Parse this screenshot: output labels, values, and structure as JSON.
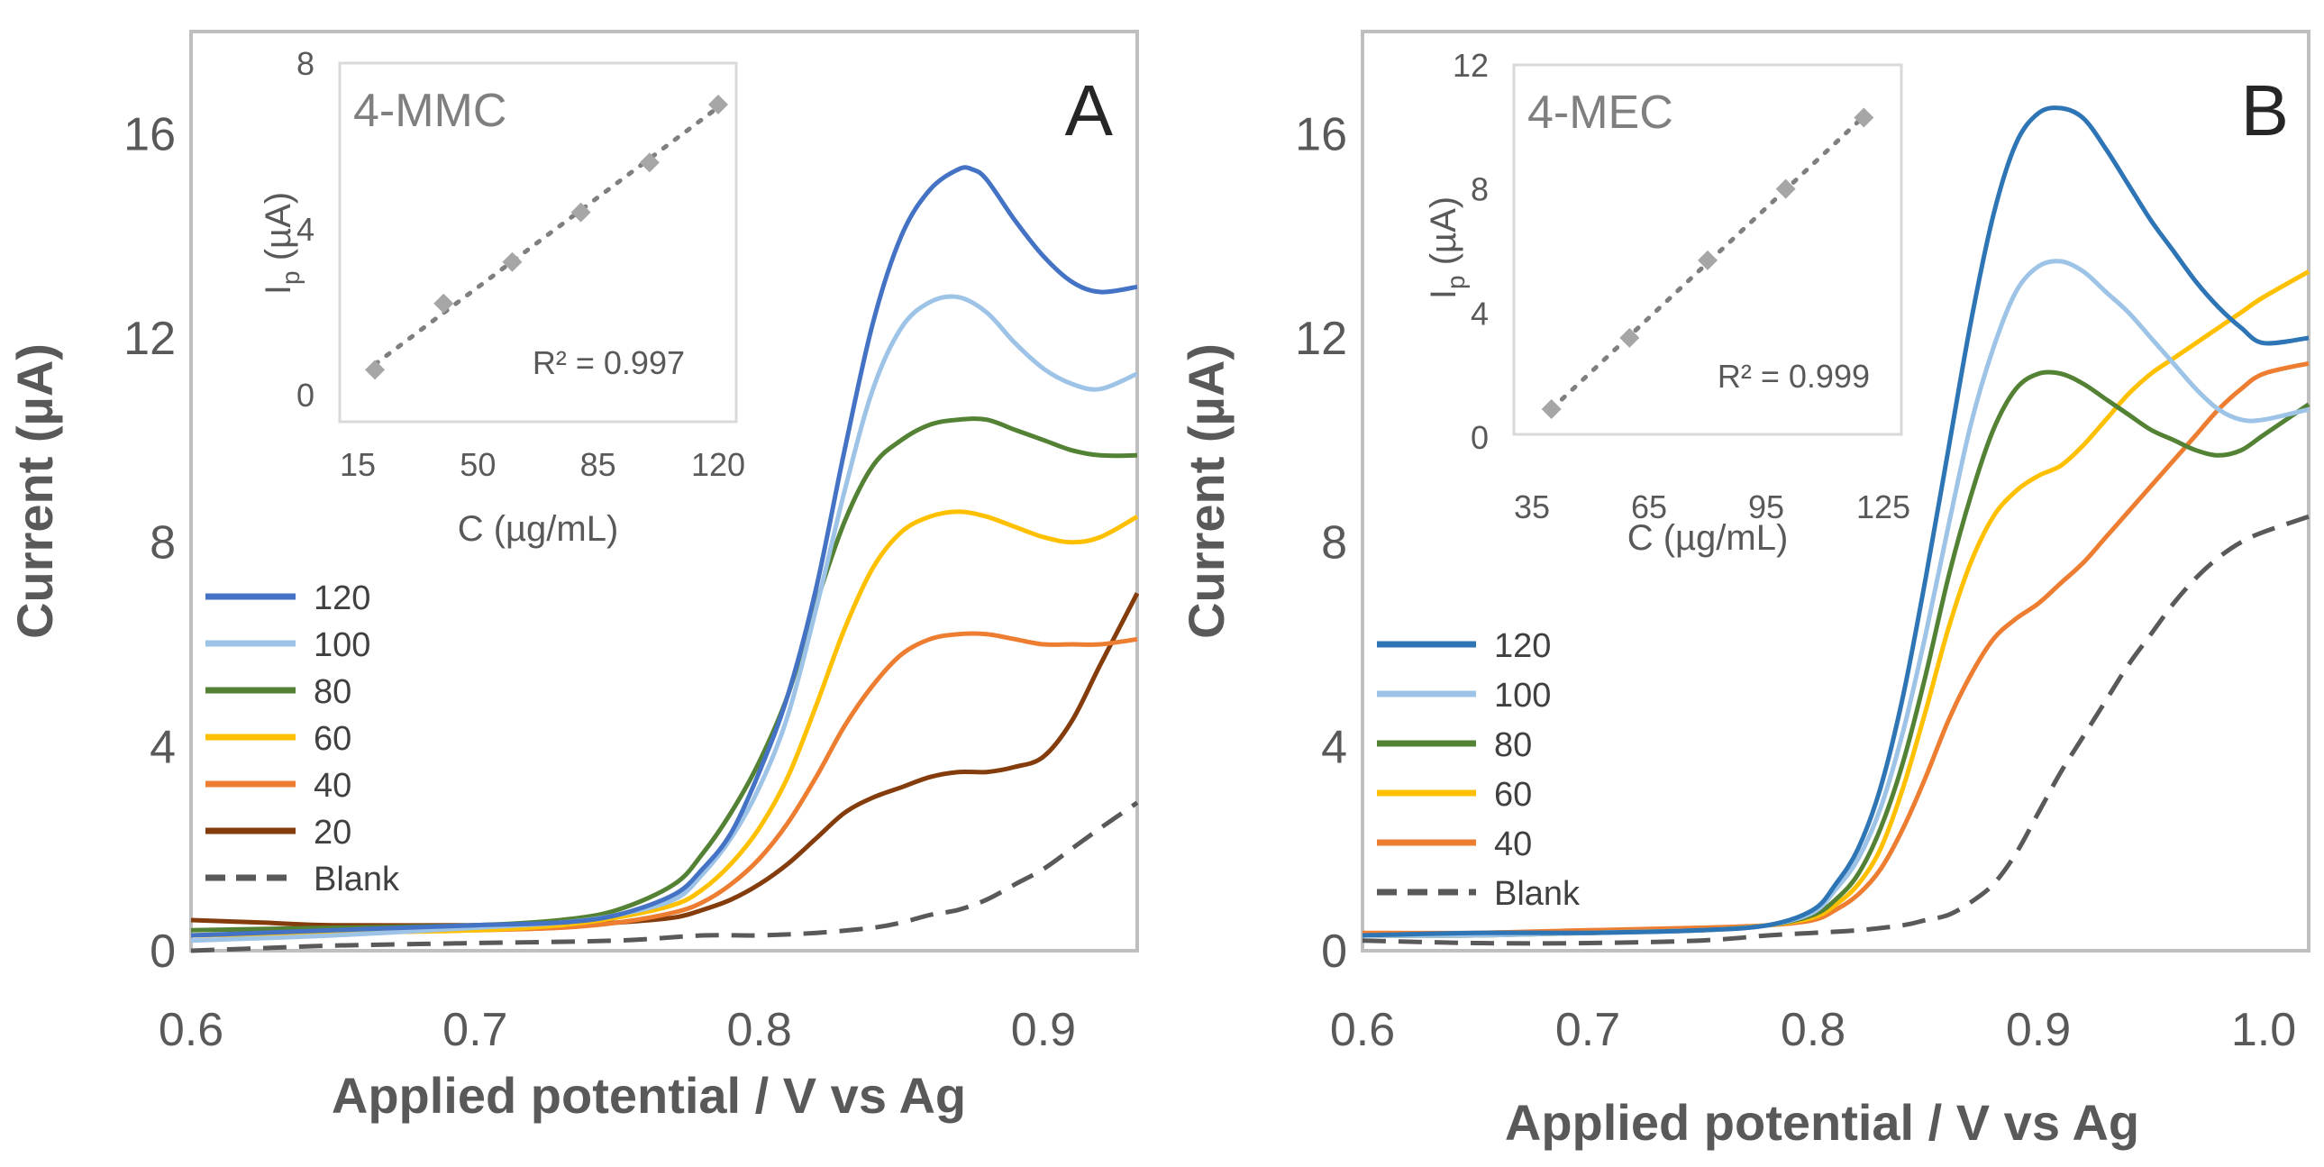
{
  "chart_data": [
    {
      "type": "line",
      "panel": "A",
      "xlabel": "Applied potential / V vs Ag",
      "ylabel": "Current (µA)",
      "xlim": [
        0.6,
        0.933
      ],
      "ylim": [
        0,
        18
      ],
      "xticks": [
        "0.6",
        "0.7",
        "0.8",
        "0.9"
      ],
      "xtick_values": [
        0.6,
        0.7,
        0.8,
        0.9
      ],
      "yticks": [
        "0",
        "4",
        "8",
        "12",
        "16"
      ],
      "ytick_values": [
        0,
        4,
        8,
        12,
        16
      ],
      "legend_position": "bottom-left",
      "series": [
        {
          "name": "120",
          "color": "#4472c4",
          "dash": false,
          "x": [
            0.6,
            0.65,
            0.7,
            0.73,
            0.75,
            0.77,
            0.78,
            0.79,
            0.8,
            0.81,
            0.82,
            0.83,
            0.84,
            0.85,
            0.86,
            0.87,
            0.875,
            0.88,
            0.89,
            0.9,
            0.91,
            0.92,
            0.933
          ],
          "y": [
            0.3,
            0.4,
            0.5,
            0.55,
            0.7,
            1.1,
            1.6,
            2.3,
            3.5,
            5.0,
            7.1,
            9.8,
            12.3,
            14.0,
            14.9,
            15.3,
            15.3,
            15.1,
            14.3,
            13.6,
            13.1,
            12.9,
            13.0
          ]
        },
        {
          "name": "100",
          "color": "#9dc3e6",
          "dash": false,
          "x": [
            0.6,
            0.65,
            0.7,
            0.73,
            0.75,
            0.77,
            0.78,
            0.79,
            0.8,
            0.81,
            0.82,
            0.83,
            0.84,
            0.85,
            0.86,
            0.87,
            0.88,
            0.89,
            0.9,
            0.91,
            0.92,
            0.933
          ],
          "y": [
            0.2,
            0.3,
            0.45,
            0.55,
            0.7,
            1.0,
            1.5,
            2.2,
            3.2,
            4.6,
            6.7,
            9.0,
            11.0,
            12.2,
            12.7,
            12.8,
            12.5,
            11.9,
            11.4,
            11.1,
            11.0,
            11.3
          ]
        },
        {
          "name": "80",
          "color": "#548235",
          "dash": false,
          "x": [
            0.6,
            0.65,
            0.7,
            0.73,
            0.75,
            0.77,
            0.78,
            0.79,
            0.8,
            0.81,
            0.82,
            0.83,
            0.84,
            0.85,
            0.86,
            0.87,
            0.88,
            0.89,
            0.9,
            0.91,
            0.92,
            0.933
          ],
          "y": [
            0.4,
            0.45,
            0.5,
            0.6,
            0.8,
            1.3,
            1.9,
            2.7,
            3.7,
            5.0,
            6.8,
            8.4,
            9.5,
            10.0,
            10.3,
            10.4,
            10.4,
            10.2,
            10.0,
            9.8,
            9.7,
            9.7
          ]
        },
        {
          "name": "60",
          "color": "#ffc000",
          "dash": false,
          "x": [
            0.6,
            0.65,
            0.7,
            0.73,
            0.75,
            0.77,
            0.78,
            0.79,
            0.8,
            0.81,
            0.82,
            0.83,
            0.84,
            0.85,
            0.86,
            0.87,
            0.88,
            0.89,
            0.9,
            0.91,
            0.92,
            0.933
          ],
          "y": [
            0.3,
            0.35,
            0.4,
            0.5,
            0.65,
            0.9,
            1.2,
            1.7,
            2.4,
            3.4,
            4.8,
            6.3,
            7.5,
            8.2,
            8.5,
            8.6,
            8.5,
            8.3,
            8.1,
            8.0,
            8.1,
            8.5
          ]
        },
        {
          "name": "40",
          "color": "#ed7d31",
          "dash": false,
          "x": [
            0.6,
            0.65,
            0.7,
            0.73,
            0.75,
            0.77,
            0.78,
            0.79,
            0.8,
            0.81,
            0.82,
            0.83,
            0.84,
            0.85,
            0.86,
            0.87,
            0.88,
            0.89,
            0.9,
            0.91,
            0.92,
            0.933
          ],
          "y": [
            0.3,
            0.35,
            0.4,
            0.45,
            0.55,
            0.75,
            0.95,
            1.3,
            1.8,
            2.5,
            3.4,
            4.4,
            5.2,
            5.8,
            6.1,
            6.2,
            6.2,
            6.1,
            6.0,
            6.0,
            6.0,
            6.1
          ]
        },
        {
          "name": "20",
          "color": "#843c0c",
          "dash": false,
          "x": [
            0.6,
            0.625,
            0.65,
            0.7,
            0.73,
            0.75,
            0.77,
            0.78,
            0.79,
            0.8,
            0.81,
            0.82,
            0.83,
            0.84,
            0.85,
            0.86,
            0.87,
            0.88,
            0.89,
            0.9,
            0.91,
            0.92,
            0.933
          ],
          "y": [
            0.6,
            0.55,
            0.5,
            0.5,
            0.5,
            0.55,
            0.65,
            0.8,
            1.0,
            1.3,
            1.7,
            2.2,
            2.7,
            3.0,
            3.2,
            3.4,
            3.5,
            3.5,
            3.6,
            3.8,
            4.5,
            5.6,
            7.0
          ]
        },
        {
          "name": "Blank",
          "color": "#595959",
          "dash": true,
          "x": [
            0.6,
            0.625,
            0.65,
            0.7,
            0.75,
            0.78,
            0.8,
            0.82,
            0.84,
            0.85,
            0.86,
            0.87,
            0.88,
            0.89,
            0.9,
            0.91,
            0.92,
            0.933
          ],
          "y": [
            0.0,
            0.05,
            0.1,
            0.15,
            0.2,
            0.3,
            0.3,
            0.35,
            0.45,
            0.55,
            0.7,
            0.8,
            1.0,
            1.3,
            1.6,
            2.0,
            2.4,
            2.9
          ]
        }
      ],
      "inset": {
        "label": "4-MMC",
        "xlabel": "C (µg/mL)",
        "ylabel_main": "I",
        "ylabel_sub": "p",
        "ylabel_rest": " (µA)",
        "xlim": [
          15,
          120
        ],
        "ylim": [
          0,
          8
        ],
        "xticks": [
          "15",
          "50",
          "85",
          "120"
        ],
        "xtick_values": [
          15,
          50,
          85,
          120
        ],
        "yticks": [
          "0",
          "4",
          "8"
        ],
        "ytick_values": [
          0,
          4,
          8
        ],
        "r2": "R² = 0.997",
        "x": [
          20,
          40,
          60,
          80,
          100,
          120
        ],
        "y": [
          0.6,
          2.2,
          3.2,
          4.4,
          5.6,
          7.0
        ],
        "color": "#a6a6a6"
      }
    },
    {
      "type": "line",
      "panel": "B",
      "xlabel": "Applied potential / V vs Ag",
      "ylabel": "Current (µA)",
      "xlim": [
        0.6,
        1.02
      ],
      "ylim": [
        0,
        18
      ],
      "xticks": [
        "0.6",
        "0.7",
        "0.8",
        "0.9",
        "1.0"
      ],
      "xtick_values": [
        0.6,
        0.7,
        0.8,
        0.9,
        1.0
      ],
      "yticks": [
        "0",
        "4",
        "8",
        "12",
        "16"
      ],
      "ytick_values": [
        0,
        4,
        8,
        12,
        16
      ],
      "legend_position": "bottom-left",
      "series": [
        {
          "name": "120",
          "color": "#2e75b6",
          "dash": false,
          "x": [
            0.6,
            0.65,
            0.7,
            0.75,
            0.78,
            0.8,
            0.81,
            0.82,
            0.83,
            0.84,
            0.85,
            0.86,
            0.87,
            0.88,
            0.89,
            0.9,
            0.91,
            0.92,
            0.93,
            0.94,
            0.95,
            0.96,
            0.97,
            0.98,
            0.99,
            1.0,
            1.02
          ],
          "y": [
            0.3,
            0.35,
            0.35,
            0.4,
            0.5,
            0.8,
            1.3,
            2.0,
            3.2,
            5.0,
            7.3,
            9.8,
            12.3,
            14.4,
            15.8,
            16.4,
            16.5,
            16.3,
            15.7,
            15.0,
            14.3,
            13.7,
            13.1,
            12.6,
            12.2,
            11.9,
            12.0
          ]
        },
        {
          "name": "100",
          "color": "#9dc3e6",
          "dash": false,
          "x": [
            0.6,
            0.65,
            0.7,
            0.75,
            0.78,
            0.8,
            0.81,
            0.82,
            0.83,
            0.84,
            0.85,
            0.86,
            0.87,
            0.88,
            0.89,
            0.9,
            0.91,
            0.92,
            0.93,
            0.94,
            0.95,
            0.96,
            0.97,
            0.98,
            0.99,
            1.0,
            1.02
          ],
          "y": [
            0.3,
            0.3,
            0.35,
            0.4,
            0.5,
            0.75,
            1.2,
            1.8,
            2.8,
            4.3,
            6.2,
            8.3,
            10.3,
            11.8,
            12.9,
            13.4,
            13.5,
            13.3,
            12.9,
            12.5,
            12.0,
            11.5,
            11.0,
            10.6,
            10.4,
            10.4,
            10.6
          ]
        },
        {
          "name": "80",
          "color": "#548235",
          "dash": false,
          "x": [
            0.6,
            0.65,
            0.7,
            0.75,
            0.78,
            0.8,
            0.81,
            0.82,
            0.83,
            0.84,
            0.85,
            0.86,
            0.87,
            0.88,
            0.89,
            0.9,
            0.91,
            0.92,
            0.93,
            0.94,
            0.95,
            0.96,
            0.97,
            0.98,
            0.99,
            1.0,
            1.02
          ],
          "y": [
            0.3,
            0.3,
            0.35,
            0.4,
            0.5,
            0.7,
            1.0,
            1.5,
            2.4,
            3.7,
            5.4,
            7.3,
            8.9,
            10.2,
            11.0,
            11.3,
            11.3,
            11.1,
            10.8,
            10.5,
            10.2,
            10.0,
            9.8,
            9.7,
            9.8,
            10.1,
            10.7
          ]
        },
        {
          "name": "60",
          "color": "#ffc000",
          "dash": false,
          "x": [
            0.6,
            0.65,
            0.7,
            0.75,
            0.78,
            0.8,
            0.81,
            0.82,
            0.83,
            0.84,
            0.85,
            0.86,
            0.87,
            0.88,
            0.89,
            0.9,
            0.91,
            0.92,
            0.93,
            0.94,
            0.95,
            0.96,
            0.97,
            0.98,
            0.99,
            1.0,
            1.02
          ],
          "y": [
            0.3,
            0.3,
            0.35,
            0.4,
            0.5,
            0.65,
            0.9,
            1.3,
            2.0,
            3.2,
            4.7,
            6.3,
            7.6,
            8.5,
            9.0,
            9.3,
            9.5,
            9.9,
            10.4,
            10.9,
            11.3,
            11.6,
            11.9,
            12.2,
            12.5,
            12.8,
            13.3
          ]
        },
        {
          "name": "40",
          "color": "#ed7d31",
          "dash": false,
          "x": [
            0.6,
            0.65,
            0.7,
            0.75,
            0.78,
            0.8,
            0.81,
            0.82,
            0.83,
            0.84,
            0.85,
            0.86,
            0.87,
            0.88,
            0.89,
            0.9,
            0.91,
            0.92,
            0.93,
            0.94,
            0.95,
            0.96,
            0.97,
            0.98,
            0.99,
            1.0,
            1.02
          ],
          "y": [
            0.35,
            0.35,
            0.4,
            0.45,
            0.5,
            0.6,
            0.8,
            1.1,
            1.6,
            2.4,
            3.4,
            4.5,
            5.4,
            6.1,
            6.5,
            6.8,
            7.2,
            7.6,
            8.1,
            8.6,
            9.1,
            9.6,
            10.1,
            10.6,
            11.0,
            11.3,
            11.5
          ]
        },
        {
          "name": "Blank",
          "color": "#595959",
          "dash": true,
          "x": [
            0.6,
            0.65,
            0.7,
            0.75,
            0.78,
            0.8,
            0.82,
            0.84,
            0.85,
            0.86,
            0.87,
            0.88,
            0.89,
            0.9,
            0.91,
            0.92,
            0.93,
            0.94,
            0.95,
            0.96,
            0.97,
            0.98,
            0.99,
            1.0,
            1.02
          ],
          "y": [
            0.2,
            0.15,
            0.15,
            0.2,
            0.3,
            0.35,
            0.4,
            0.5,
            0.6,
            0.7,
            0.95,
            1.3,
            1.9,
            2.7,
            3.5,
            4.2,
            4.9,
            5.6,
            6.2,
            6.8,
            7.3,
            7.7,
            8.0,
            8.2,
            8.5
          ]
        }
      ],
      "inset": {
        "label": "4-MEC",
        "xlabel": "C (µg/mL)",
        "ylabel_main": "I",
        "ylabel_sub": "p",
        "ylabel_rest": " (µA)",
        "xlim": [
          35,
          125
        ],
        "ylim": [
          0,
          12
        ],
        "xticks": [
          "35",
          "65",
          "95",
          "125"
        ],
        "xtick_values": [
          35,
          65,
          95,
          125
        ],
        "yticks": [
          "0",
          "4",
          "8",
          "12"
        ],
        "ytick_values": [
          0,
          4,
          8,
          12
        ],
        "r2": "R² = 0.999",
        "x": [
          40,
          60,
          80,
          100,
          120
        ],
        "y": [
          0.9,
          3.2,
          5.7,
          8.0,
          10.3
        ],
        "color": "#a6a6a6"
      }
    }
  ]
}
